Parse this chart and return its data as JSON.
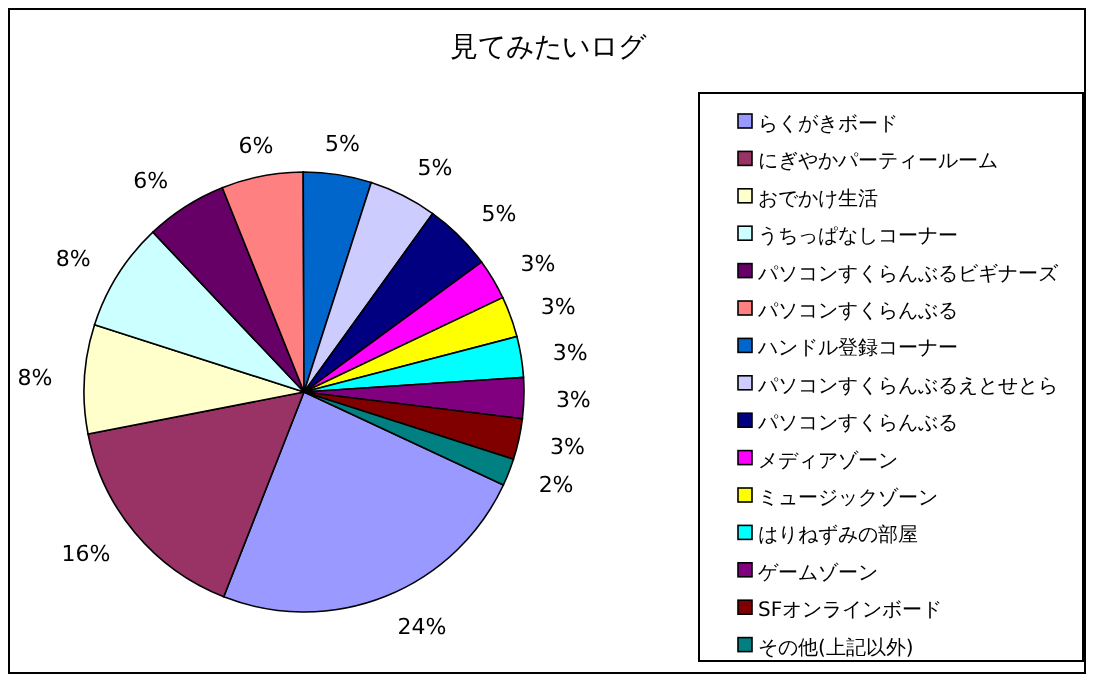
{
  "chart_data": {
    "type": "pie",
    "title": "見てみたいログ",
    "categories": [
      "らくがきボード",
      "にぎやかパーティールーム",
      "おでかけ生活",
      "うちっぱなしコーナー",
      "パソコンすくらんぶるビギナーズ",
      "パソコンすくらんぶる",
      "ハンドル登録コーナー",
      "パソコンすくらんぶるえとせとら",
      "パソコンすくらんぶる",
      "メディアゾーン",
      "ミュージックゾーン",
      "はりねずみの部屋",
      "ゲームゾーン",
      "SFオンラインボード",
      "その他(上記以外)"
    ],
    "values": [
      24,
      16,
      8,
      8,
      6,
      6,
      5,
      5,
      5,
      3,
      3,
      3,
      3,
      3,
      2
    ],
    "value_labels": [
      "24%",
      "16%",
      "8%",
      "8%",
      "6%",
      "6%",
      "5%",
      "5%",
      "5%",
      "3%",
      "3%",
      "3%",
      "3%",
      "3%",
      "2%"
    ],
    "colors": [
      "#9999ff",
      "#993366",
      "#ffffcc",
      "#ccffff",
      "#660066",
      "#ff8080",
      "#0066cc",
      "#ccccff",
      "#000080",
      "#ff00ff",
      "#ffff00",
      "#00ffff",
      "#800080",
      "#800000",
      "#008080"
    ],
    "legend": "right"
  }
}
